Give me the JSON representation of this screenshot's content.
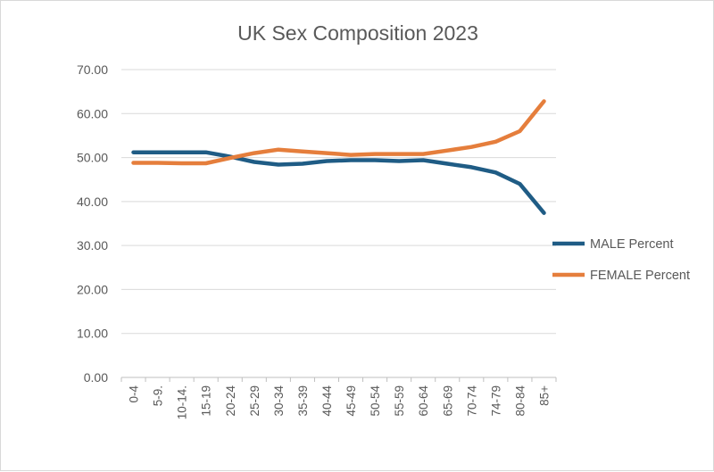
{
  "chart_data": {
    "type": "line",
    "title": "UK Sex Composition 2023",
    "xlabel": "",
    "ylabel": "",
    "ylim": [
      0,
      70
    ],
    "yticks": [
      "0.00",
      "10.00",
      "20.00",
      "30.00",
      "40.00",
      "50.00",
      "60.00",
      "70.00"
    ],
    "grid": true,
    "legend_position": "right",
    "categories": [
      "0-4",
      "5-9.",
      "10-14.",
      "15-19",
      "20-24",
      "25-29",
      "30-34",
      "35-39",
      "40-44",
      "45-49",
      "50-54",
      "55-59",
      "60-64",
      "65-69",
      "70-74",
      "74-79",
      "80-84",
      "85+"
    ],
    "series": [
      {
        "name": "MALE Percent",
        "color": "#1f5c85",
        "values": [
          51.2,
          51.2,
          51.2,
          51.2,
          50.2,
          49.0,
          48.4,
          48.6,
          49.2,
          49.4,
          49.4,
          49.2,
          49.4,
          48.6,
          47.8,
          46.6,
          44.0,
          37.4
        ]
      },
      {
        "name": "FEMALE Percent",
        "color": "#e57e3c",
        "values": [
          48.8,
          48.8,
          48.7,
          48.7,
          49.9,
          51.0,
          51.8,
          51.4,
          51.0,
          50.6,
          50.8,
          50.8,
          50.8,
          51.6,
          52.4,
          53.6,
          56.0,
          62.8
        ]
      }
    ]
  }
}
